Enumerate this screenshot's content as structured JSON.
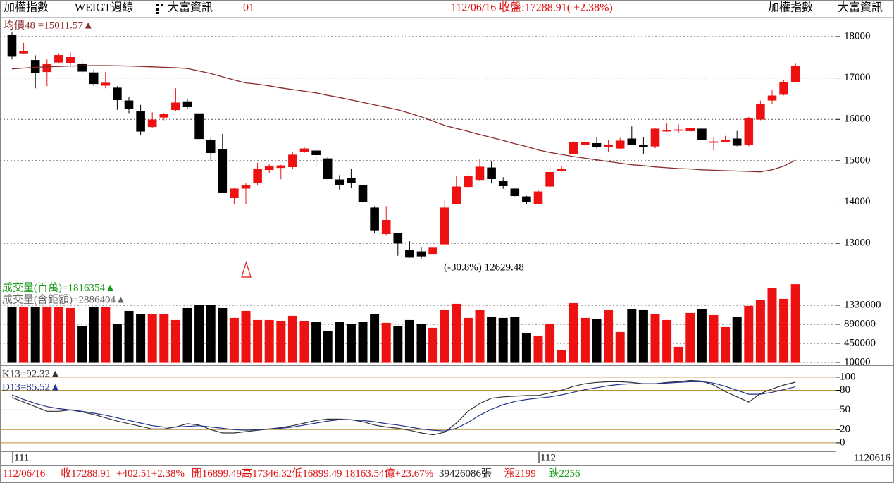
{
  "header": {
    "left": [
      "加權指數",
      "WEIGT週線",
      "大富資訊",
      "01"
    ],
    "center": "112/06/16 收盤:17288.91( +2.38%)",
    "right": [
      "加權指數",
      "大富資訊"
    ]
  },
  "footer": [
    "112/06/16",
    "收17288.91",
    "+402.51+2.38%",
    "開16899.49高17346.32低16899.49",
    "18163.54億+23.67%",
    "39426086張",
    "漲2199",
    "跌2256"
  ],
  "chart_data": [
    {
      "type": "candlestick",
      "up_color": "#ee1111",
      "down_color": "#000000",
      "ylim": [
        12150,
        18460
      ],
      "yticks": [
        13000,
        14000,
        15000,
        16000,
        17000,
        18000
      ],
      "grid": true,
      "grid_color": "#555555",
      "grid_style": "dotted",
      "open": [
        18030,
        17600,
        17430,
        17150,
        17380,
        17370,
        17330,
        17130,
        16820,
        16760,
        16450,
        16190,
        15820,
        16050,
        16230,
        16430,
        16140,
        15490,
        15280,
        14100,
        14330,
        14460,
        14780,
        14830,
        14850,
        15220,
        15240,
        15050,
        14540,
        14580,
        14400,
        13860,
        13230,
        13240,
        12830,
        12800,
        12750,
        12980,
        13950,
        14370,
        14540,
        14830,
        14510,
        14320,
        14130,
        13950,
        14380,
        14760,
        15160,
        15380,
        15420,
        15330,
        15300,
        15530,
        15380,
        15350,
        15720,
        15730,
        15720,
        15770,
        15440,
        15460,
        15530,
        15380,
        16000,
        16460,
        16600,
        16899.49
      ],
      "high": [
        18100,
        17850,
        17550,
        17450,
        17600,
        17620,
        17450,
        17200,
        17150,
        16800,
        16550,
        16350,
        16170,
        16150,
        16750,
        16500,
        16150,
        15550,
        15650,
        14350,
        14450,
        14950,
        14920,
        14900,
        15200,
        15330,
        15280,
        15100,
        14650,
        14800,
        14400,
        13900,
        13900,
        13250,
        13050,
        12900,
        12900,
        14060,
        14620,
        14750,
        15050,
        15000,
        14600,
        14330,
        14150,
        14300,
        14900,
        14860,
        15480,
        15550,
        15560,
        15500,
        15550,
        15830,
        15560,
        15780,
        15900,
        15880,
        15800,
        15780,
        15550,
        15600,
        15720,
        16060,
        16450,
        16720,
        16950,
        17346.32
      ],
      "low": [
        17450,
        17580,
        16750,
        16800,
        17350,
        17300,
        17100,
        16800,
        16750,
        16230,
        16150,
        15620,
        15800,
        15980,
        16200,
        16250,
        15500,
        14980,
        14220,
        13950,
        13950,
        14400,
        14700,
        14550,
        14800,
        15190,
        14870,
        14540,
        14300,
        14350,
        13990,
        13240,
        13200,
        12700,
        12650,
        12629.48,
        12740,
        12960,
        13940,
        14300,
        14500,
        14450,
        14320,
        14140,
        13950,
        13950,
        14350,
        14740,
        15150,
        15310,
        15300,
        15200,
        15280,
        15390,
        15160,
        15300,
        15700,
        15680,
        15700,
        15490,
        15250,
        15450,
        15350,
        15350,
        15980,
        16380,
        16580,
        16899.49
      ],
      "close": [
        17520,
        17650,
        17130,
        17330,
        17550,
        17500,
        17160,
        16860,
        16880,
        16470,
        16260,
        15710,
        15990,
        16120,
        16400,
        16300,
        15530,
        15190,
        14220,
        14320,
        14400,
        14800,
        14870,
        14880,
        15140,
        15290,
        15140,
        14560,
        14420,
        14460,
        14000,
        13320,
        13560,
        13000,
        12660,
        12690,
        12890,
        13860,
        14370,
        14620,
        14850,
        14560,
        14390,
        14150,
        14000,
        14250,
        14720,
        14800,
        15450,
        15450,
        15330,
        15380,
        15480,
        15390,
        15330,
        15770,
        15730,
        15750,
        15790,
        15500,
        15460,
        15500,
        15370,
        16030,
        16360,
        16570,
        16886.4,
        17288.91
      ],
      "ma": {
        "label": "均價48 =15011.57▲",
        "color": "#8b2a2a",
        "values": [
          17220,
          17240,
          17260,
          17270,
          17280,
          17290,
          17295,
          17300,
          17300,
          17295,
          17290,
          17280,
          17270,
          17260,
          17250,
          17230,
          17170,
          17110,
          17030,
          16950,
          16880,
          16850,
          16810,
          16760,
          16720,
          16680,
          16640,
          16580,
          16530,
          16470,
          16410,
          16350,
          16290,
          16230,
          16150,
          16060,
          15960,
          15850,
          15780,
          15710,
          15630,
          15560,
          15490,
          15410,
          15340,
          15260,
          15200,
          15150,
          15100,
          15060,
          15020,
          14980,
          14940,
          14900,
          14880,
          14850,
          14830,
          14810,
          14800,
          14780,
          14770,
          14760,
          14750,
          14740,
          14730,
          14780,
          14870,
          15011.57
        ]
      },
      "annotation": "(-30.8%) 12629.48"
    },
    {
      "type": "bar",
      "ylim": [
        -40000,
        1916000
      ],
      "yticks": [
        10000,
        450000,
        890000,
        1330000
      ],
      "grid": true,
      "grid_color": "#555555",
      "grid_style": "dotted",
      "legend": [
        {
          "label": "成交量(百萬)=1816354▲",
          "color": "#1a9a1a"
        },
        {
          "label": "成交量(含鉅額)=2886404▲",
          "color": "#666666"
        }
      ],
      "values": [
        1297000,
        1297000,
        1297000,
        1297000,
        1297000,
        1265000,
        841000,
        1297000,
        1297000,
        890000,
        1200000,
        1118000,
        1118000,
        1118000,
        988000,
        1265000,
        1330000,
        1330000,
        1265000,
        1037000,
        1200000,
        988000,
        988000,
        971000,
        1086000,
        971000,
        939000,
        743000,
        939000,
        890000,
        939000,
        1118000,
        923000,
        841000,
        988000,
        890000,
        809000,
        1216000,
        1363000,
        1037000,
        1216000,
        1069000,
        1037000,
        1053000,
        694000,
        629000,
        906000,
        287000,
        1379000,
        1037000,
        1020000,
        1232000,
        711000,
        1248000,
        1232000,
        1118000,
        988000,
        369000,
        1151000,
        1248000,
        1102000,
        825000,
        1053000,
        1314000,
        1460000,
        1737000,
        1477000,
        1816354
      ]
    },
    {
      "type": "line",
      "ylim": [
        -13,
        116
      ],
      "yticks": [
        0,
        20,
        50,
        80,
        100
      ],
      "grid": true,
      "grid_color": "#b8913a",
      "grid_style": "solid",
      "categories": [
        "111",
        null,
        null,
        null,
        null,
        null,
        null,
        null,
        null,
        null,
        null,
        null,
        null,
        null,
        null,
        null,
        null,
        null,
        null,
        null,
        null,
        null,
        null,
        null,
        null,
        null,
        null,
        null,
        null,
        null,
        null,
        null,
        null,
        null,
        null,
        null,
        null,
        null,
        null,
        null,
        null,
        null,
        null,
        null,
        null,
        "112",
        null,
        null,
        null,
        null,
        null,
        null,
        null,
        null,
        null,
        null,
        null,
        null,
        null,
        null,
        null,
        null,
        null,
        null,
        null,
        null,
        null,
        null
      ],
      "x_end_label": "1120616",
      "series": [
        {
          "name": "K13=92.32▲",
          "color": "#333333",
          "values": [
            69,
            62,
            55,
            48,
            48,
            50,
            47,
            43,
            38,
            33,
            29,
            25,
            21,
            21,
            24,
            29,
            27,
            20,
            15,
            15,
            17,
            19,
            21,
            23,
            26,
            30,
            34,
            36,
            36,
            35,
            32,
            27,
            24,
            22,
            19,
            15,
            12,
            16,
            30,
            48,
            60,
            68,
            70,
            71,
            72,
            72,
            76,
            80,
            86,
            90,
            92,
            93,
            93,
            92,
            90,
            90,
            92,
            93,
            95,
            94,
            88,
            78,
            70,
            62,
            75,
            82,
            88,
            92.32
          ]
        },
        {
          "name": "D13=85.52▲",
          "color": "#22338a",
          "values": [
            73,
            66,
            60,
            55,
            52,
            50,
            48,
            45,
            42,
            38,
            34,
            30,
            26,
            24,
            24,
            25,
            26,
            24,
            22,
            20,
            19,
            20,
            21,
            22,
            24,
            27,
            30,
            33,
            35,
            35,
            34,
            32,
            29,
            27,
            24,
            21,
            19,
            18,
            22,
            31,
            42,
            51,
            58,
            63,
            66,
            68,
            70,
            73,
            77,
            81,
            84,
            87,
            89,
            90,
            90,
            90,
            91,
            92,
            93,
            93,
            91,
            86,
            80,
            74,
            74,
            77,
            81,
            85.52
          ]
        }
      ]
    }
  ]
}
